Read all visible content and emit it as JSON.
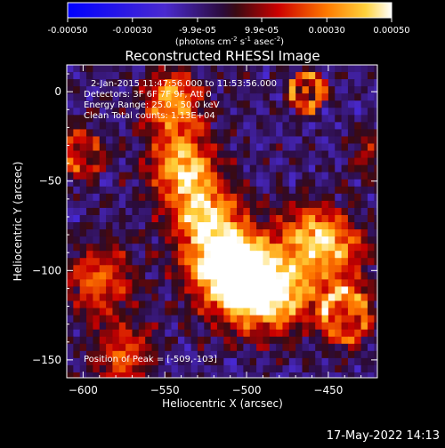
{
  "chart_data": {
    "type": "heatmap",
    "title": "Reconstructed RHESSI Image",
    "xlabel": "Heliocentric X (arcsec)",
    "ylabel": "Heliocentric Y (arcsec)",
    "xlim": [
      -610,
      -420
    ],
    "ylim": [
      -160,
      15
    ],
    "x_ticks": [
      -600,
      -550,
      -500,
      -450
    ],
    "y_ticks": [
      -150,
      -100,
      -50,
      0
    ],
    "colorbar": {
      "range": [
        -0.0005,
        0.0005
      ],
      "ticks": [
        {
          "value": -0.0005,
          "label": "-0.00050"
        },
        {
          "value": -0.0003,
          "label": "-0.00030"
        },
        {
          "value": -9.9e-05,
          "label": "-9.9e-05"
        },
        {
          "value": 9.9e-05,
          "label": "9.9e-05"
        },
        {
          "value": 0.0003,
          "label": "0.00030"
        },
        {
          "value": 0.0005,
          "label": "0.00050"
        }
      ],
      "unit_label": "(photons cm",
      "unit_sup1": "-2",
      "unit_mid": " s",
      "unit_sup2": "-1",
      "unit_end": " asec",
      "unit_sup3": "-2",
      "unit_close": ")"
    },
    "annotations": [
      "2-Jan-2015 11:47:56.000 to 11:53:56.000",
      "Detectors: 3F 6F 7F 9F, Att 0",
      "Energy Range: 25.0 - 50.0 keV",
      "Clean     Total counts: 1.13E+04"
    ],
    "peak_label": "Position of Peak = [-509,-103]",
    "peak": {
      "x": -509,
      "y": -103
    },
    "sources": [
      {
        "x": -545,
        "y": -5,
        "amp": 1.0,
        "sigma": 12
      },
      {
        "x": -540,
        "y": -40,
        "amp": 1.0,
        "sigma": 14
      },
      {
        "x": -528,
        "y": -65,
        "amp": 0.85,
        "sigma": 14
      },
      {
        "x": -515,
        "y": -92,
        "amp": 1.2,
        "sigma": 16
      },
      {
        "x": -500,
        "y": -108,
        "amp": 1.25,
        "sigma": 16
      },
      {
        "x": -478,
        "y": -112,
        "amp": 0.9,
        "sigma": 15
      },
      {
        "x": -462,
        "y": -80,
        "amp": 0.75,
        "sigma": 13
      },
      {
        "x": -445,
        "y": -88,
        "amp": 0.7,
        "sigma": 13
      },
      {
        "x": -590,
        "y": -105,
        "amp": 0.75,
        "sigma": 14
      },
      {
        "x": -575,
        "y": -148,
        "amp": 0.7,
        "sigma": 13
      },
      {
        "x": -440,
        "y": -122,
        "amp": 0.6,
        "sigma": 12
      },
      {
        "x": -605,
        "y": -35,
        "amp": 0.45,
        "sigma": 10
      },
      {
        "x": -425,
        "y": -35,
        "amp": 0.4,
        "sigma": 10
      }
    ],
    "rings": [
      {
        "x": -463,
        "y": 0,
        "r": 9,
        "amp": 0.9
      },
      {
        "x": -440,
        "y": -125,
        "r": 13,
        "amp": 0.6
      },
      {
        "x": -600,
        "y": -35,
        "r": 11,
        "amp": 0.4
      }
    ],
    "cores": [
      {
        "x": -463,
        "y": 0,
        "amp": 1.3
      }
    ]
  },
  "footer": {
    "timestamp": "17-May-2022 14:13"
  }
}
